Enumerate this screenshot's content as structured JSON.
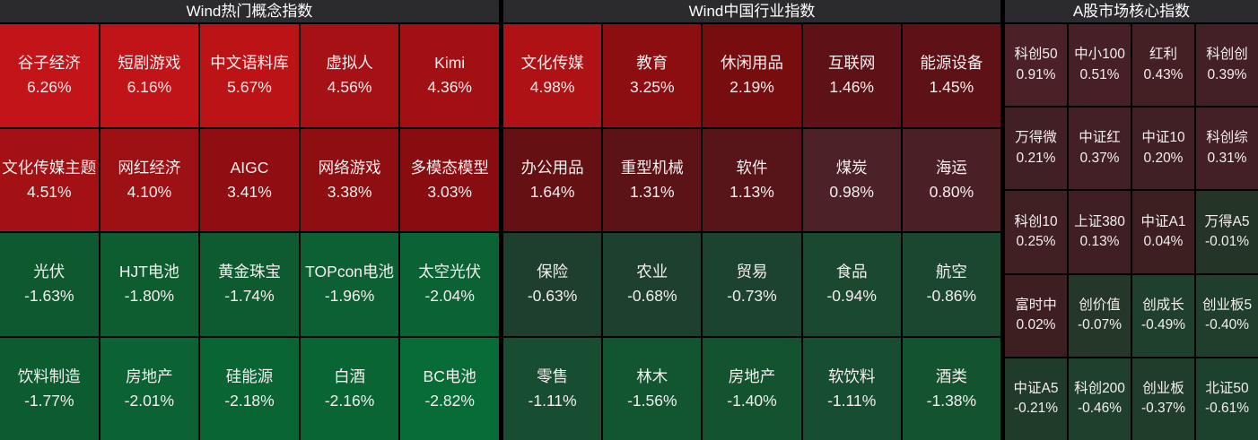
{
  "page": {
    "background": "#000000",
    "header_bg": "#2b2b2d",
    "header_text_color": "#ffffff",
    "tile_text_color": "#f4eeee",
    "positive_strong_color": "#c31419",
    "negative_strong_color": "#076c38",
    "near_zero_positive_color": "#3d1f22",
    "near_zero_negative_color": "#243528"
  },
  "chart_data": {
    "type": "heatmap",
    "value_unit": "%",
    "legend": "red = positive change, green = negative change, intensity maps to magnitude",
    "groups": [
      {
        "title": "Wind热门概念指数",
        "columns": 5,
        "tiles": [
          {
            "label": "谷子经济",
            "pct": "6.26%",
            "value": 6.26,
            "color": "#c31419"
          },
          {
            "label": "短剧游戏",
            "pct": "6.16%",
            "value": 6.16,
            "color": "#c11418"
          },
          {
            "label": "中文语料库",
            "pct": "5.67%",
            "value": 5.67,
            "color": "#bb1316"
          },
          {
            "label": "虚拟人",
            "pct": "4.56%",
            "value": 4.56,
            "color": "#a51114"
          },
          {
            "label": "Kimi",
            "pct": "4.36%",
            "value": 4.36,
            "color": "#a21013"
          },
          {
            "label": "文化传媒主题",
            "pct": "4.51%",
            "value": 4.51,
            "color": "#a41114"
          },
          {
            "label": "网红经济",
            "pct": "4.10%",
            "value": 4.1,
            "color": "#9d1013"
          },
          {
            "label": "AIGC",
            "pct": "3.41%",
            "value": 3.41,
            "color": "#900e11"
          },
          {
            "label": "网络游戏",
            "pct": "3.38%",
            "value": 3.38,
            "color": "#8f0e11"
          },
          {
            "label": "多模态模型",
            "pct": "3.03%",
            "value": 3.03,
            "color": "#890d10"
          },
          {
            "label": "光伏",
            "pct": "-1.63%",
            "value": -1.63,
            "color": "#0f5930"
          },
          {
            "label": "HJT电池",
            "pct": "-1.80%",
            "value": -1.8,
            "color": "#0d5d31"
          },
          {
            "label": "黄金珠宝",
            "pct": "-1.74%",
            "value": -1.74,
            "color": "#0e5b31"
          },
          {
            "label": "TOPcon电池",
            "pct": "-1.96%",
            "value": -1.96,
            "color": "#0c6033"
          },
          {
            "label": "太空光伏",
            "pct": "-2.04%",
            "value": -2.04,
            "color": "#0b6234"
          },
          {
            "label": "饮料制造",
            "pct": "-1.77%",
            "value": -1.77,
            "color": "#0d5c31"
          },
          {
            "label": "房地产",
            "pct": "-2.01%",
            "value": -2.01,
            "color": "#0b6234"
          },
          {
            "label": "硅能源",
            "pct": "-2.18%",
            "value": -2.18,
            "color": "#0a6535"
          },
          {
            "label": "白酒",
            "pct": "-2.16%",
            "value": -2.16,
            "color": "#0a6535"
          },
          {
            "label": "BC电池",
            "pct": "-2.82%",
            "value": -2.82,
            "color": "#076c38"
          }
        ]
      },
      {
        "title": "Wind中国行业指数",
        "columns": 5,
        "tiles": [
          {
            "label": "文化传媒",
            "pct": "4.98%",
            "value": 4.98,
            "color": "#ae1215"
          },
          {
            "label": "教育",
            "pct": "3.25%",
            "value": 3.25,
            "color": "#8c0e11"
          },
          {
            "label": "休闲用品",
            "pct": "2.19%",
            "value": 2.19,
            "color": "#780d10"
          },
          {
            "label": "互联网",
            "pct": "1.46%",
            "value": 1.46,
            "color": "#5e1217"
          },
          {
            "label": "能源设备",
            "pct": "1.45%",
            "value": 1.45,
            "color": "#5e1217"
          },
          {
            "label": "办公用品",
            "pct": "1.64%",
            "value": 1.64,
            "color": "#651013"
          },
          {
            "label": "重型机械",
            "pct": "1.31%",
            "value": 1.31,
            "color": "#5b1317"
          },
          {
            "label": "软件",
            "pct": "1.13%",
            "value": 1.13,
            "color": "#571419"
          },
          {
            "label": "煤炭",
            "pct": "0.98%",
            "value": 0.98,
            "color": "#4c2127"
          },
          {
            "label": "海运",
            "pct": "0.80%",
            "value": 0.8,
            "color": "#4a2026"
          },
          {
            "label": "保险",
            "pct": "-0.63%",
            "value": -0.63,
            "color": "#1e3f2e"
          },
          {
            "label": "农业",
            "pct": "-0.68%",
            "value": -0.68,
            "color": "#1d412e"
          },
          {
            "label": "贸易",
            "pct": "-0.73%",
            "value": -0.73,
            "color": "#1c432f"
          },
          {
            "label": "食品",
            "pct": "-0.94%",
            "value": -0.94,
            "color": "#1a4930"
          },
          {
            "label": "航空",
            "pct": "-0.86%",
            "value": -0.86,
            "color": "#1b4730"
          },
          {
            "label": "零售",
            "pct": "-1.11%",
            "value": -1.11,
            "color": "#174e31"
          },
          {
            "label": "林木",
            "pct": "-1.56%",
            "value": -1.56,
            "color": "#115631"
          },
          {
            "label": "房地产",
            "pct": "-1.40%",
            "value": -1.4,
            "color": "#135330"
          },
          {
            "label": "软饮料",
            "pct": "-1.11%",
            "value": -1.11,
            "color": "#174e31"
          },
          {
            "label": "酒类",
            "pct": "-1.38%",
            "value": -1.38,
            "color": "#145330"
          }
        ]
      },
      {
        "title": "A股市场核心指数",
        "columns": 4,
        "tiles": [
          {
            "label": "科创50",
            "pct": "0.91%",
            "value": 0.91,
            "color": "#4b2127"
          },
          {
            "label": "中小100",
            "pct": "0.51%",
            "value": 0.51,
            "color": "#462026"
          },
          {
            "label": "红利",
            "pct": "0.43%",
            "value": 0.43,
            "color": "#442025"
          },
          {
            "label": "科创创",
            "pct": "0.39%",
            "value": 0.39,
            "color": "#432025"
          },
          {
            "label": "万得微",
            "pct": "0.21%",
            "value": 0.21,
            "color": "#402024"
          },
          {
            "label": "中证红",
            "pct": "0.37%",
            "value": 0.37,
            "color": "#432025"
          },
          {
            "label": "中证10",
            "pct": "0.20%",
            "value": 0.2,
            "color": "#402024"
          },
          {
            "label": "科创综",
            "pct": "0.31%",
            "value": 0.31,
            "color": "#422025"
          },
          {
            "label": "科创10",
            "pct": "0.25%",
            "value": 0.25,
            "color": "#412024"
          },
          {
            "label": "上证380",
            "pct": "0.13%",
            "value": 0.13,
            "color": "#3f1f23"
          },
          {
            "label": "中证A1",
            "pct": "0.04%",
            "value": 0.04,
            "color": "#3d1f22"
          },
          {
            "label": "万得A5",
            "pct": "-0.01%",
            "value": -0.01,
            "color": "#243528"
          },
          {
            "label": "富时中",
            "pct": "0.02%",
            "value": 0.02,
            "color": "#3d1f22"
          },
          {
            "label": "创价值",
            "pct": "-0.07%",
            "value": -0.07,
            "color": "#253729"
          },
          {
            "label": "创成长",
            "pct": "-0.49%",
            "value": -0.49,
            "color": "#1e402d"
          },
          {
            "label": "创业板5",
            "pct": "-0.40%",
            "value": -0.4,
            "color": "#1f3e2c"
          },
          {
            "label": "中证A5",
            "pct": "-0.21%",
            "value": -0.21,
            "color": "#213b2b"
          },
          {
            "label": "科创200",
            "pct": "-0.46%",
            "value": -0.46,
            "color": "#1e402d"
          },
          {
            "label": "创业板",
            "pct": "-0.37%",
            "value": -0.37,
            "color": "#203d2c"
          },
          {
            "label": "北证50",
            "pct": "-0.61%",
            "value": -0.61,
            "color": "#1c422e"
          }
        ]
      }
    ]
  }
}
